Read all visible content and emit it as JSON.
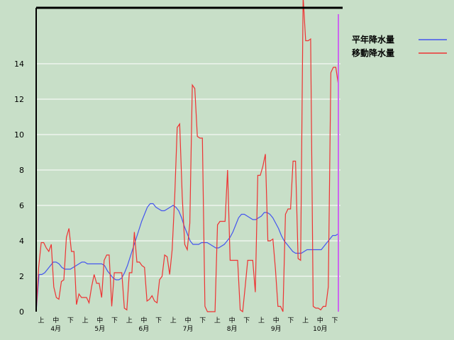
{
  "chart_data": {
    "type": "line",
    "title": "",
    "xlabel": "",
    "ylabel": "",
    "ylim": [
      0,
      17
    ],
    "yticks": [
      0,
      2,
      4,
      6,
      8,
      10,
      12,
      14
    ],
    "x_tick_labels": [
      "上",
      "中",
      "下",
      "上",
      "中",
      "下",
      "上",
      "中",
      "下",
      "上",
      "中",
      "下",
      "上",
      "中",
      "下",
      "上",
      "中",
      "下",
      "上",
      "中",
      "下"
    ],
    "month_labels": [
      "4月",
      "5月",
      "6月",
      "7月",
      "8月",
      "9月",
      "10月"
    ],
    "legend_position": "top-right",
    "grid": true,
    "series": [
      {
        "name": "平年降水量",
        "color": "#4455ee",
        "values": [
          0.0,
          2.1,
          2.1,
          2.2,
          2.4,
          2.6,
          2.8,
          2.8,
          2.7,
          2.5,
          2.4,
          2.4,
          2.4,
          2.5,
          2.6,
          2.7,
          2.8,
          2.8,
          2.7,
          2.7,
          2.7,
          2.7,
          2.7,
          2.7,
          2.6,
          2.3,
          2.1,
          1.9,
          1.8,
          1.8,
          1.9,
          2.2,
          2.6,
          3.1,
          3.6,
          4.1,
          4.6,
          5.1,
          5.5,
          5.9,
          6.1,
          6.1,
          5.9,
          5.8,
          5.7,
          5.7,
          5.8,
          5.9,
          6.0,
          5.9,
          5.7,
          5.3,
          4.8,
          4.4,
          4.0,
          3.8,
          3.8,
          3.8,
          3.9,
          3.9,
          3.9,
          3.8,
          3.7,
          3.6,
          3.6,
          3.7,
          3.8,
          4.0,
          4.2,
          4.5,
          4.9,
          5.3,
          5.5,
          5.5,
          5.4,
          5.3,
          5.2,
          5.2,
          5.3,
          5.4,
          5.6,
          5.6,
          5.5,
          5.3,
          5.0,
          4.7,
          4.3,
          4.0,
          3.8,
          3.6,
          3.4,
          3.3,
          3.3,
          3.3,
          3.4,
          3.5,
          3.5,
          3.5,
          3.5,
          3.5,
          3.5,
          3.7,
          3.9,
          4.1,
          4.3,
          4.3,
          4.4
        ]
      },
      {
        "name": "移動降水量",
        "color": "#ee3333",
        "values": [
          0.0,
          2.5,
          3.9,
          3.9,
          3.6,
          3.4,
          3.8,
          1.4,
          0.8,
          0.7,
          1.7,
          1.8,
          4.2,
          4.7,
          3.4,
          3.4,
          0.4,
          1.0,
          0.8,
          0.8,
          0.8,
          0.5,
          1.4,
          2.1,
          1.6,
          1.6,
          0.8,
          2.9,
          3.2,
          3.2,
          0.3,
          2.2,
          2.2,
          2.2,
          2.2,
          0.2,
          0.1,
          2.2,
          2.2,
          4.5,
          2.8,
          2.8,
          2.6,
          2.5,
          0.6,
          0.7,
          0.9,
          0.6,
          0.5,
          1.8,
          2.0,
          3.2,
          3.1,
          2.1,
          3.5,
          6.5,
          10.4,
          10.6,
          6.5,
          3.8,
          3.5,
          5.0,
          12.8,
          12.6,
          9.9,
          9.8,
          9.8,
          0.3,
          0.0,
          0.0,
          0.0,
          0.0,
          4.9,
          5.1,
          5.1,
          5.1,
          8.0,
          2.9,
          2.9,
          2.9,
          2.9,
          0.1,
          0.0,
          1.4,
          2.9,
          2.9,
          2.9,
          1.1,
          7.7,
          7.7,
          8.2,
          8.9,
          4.0,
          4.0,
          4.1,
          2.4,
          0.3,
          0.3,
          0.0,
          5.5,
          5.8,
          5.8,
          8.5,
          8.5,
          3.0,
          2.9,
          17.8,
          15.3,
          15.3,
          15.4,
          0.3,
          0.2,
          0.2,
          0.1,
          0.3,
          0.3,
          1.4,
          13.5,
          13.8,
          13.8,
          12.8
        ]
      }
    ]
  }
}
